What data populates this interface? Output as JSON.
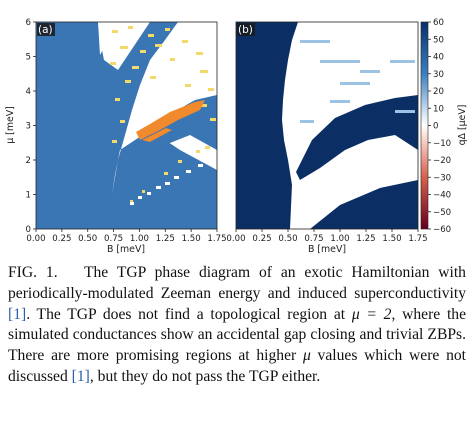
{
  "chart_data": [
    {
      "type": "heatmap",
      "panel_label": "(a)",
      "xlabel": "B [meV]",
      "ylabel": "μ [meV]",
      "xlim": [
        0.0,
        1.75
      ],
      "ylim": [
        0,
        6
      ],
      "x_ticks": [
        "0.00",
        "0.25",
        "0.50",
        "0.75",
        "1.00",
        "1.25",
        "1.50",
        "1.75"
      ],
      "y_ticks": [
        "0",
        "1",
        "2",
        "3",
        "4",
        "5",
        "6"
      ],
      "colors": {
        "trivial": "#3a75b4",
        "gapless": "#ffffff",
        "scattered": "#f2d96a",
        "topological": "#f08a2c"
      },
      "regions": [
        {
          "name": "topological (orange)",
          "polygon_data": [
            [
              0.88,
              2.55
            ],
            [
              1.2,
              2.95
            ],
            [
              1.5,
              3.25
            ],
            [
              1.62,
              3.55
            ],
            [
              1.45,
              3.55
            ],
            [
              1.15,
              3.15
            ],
            [
              0.9,
              2.85
            ]
          ]
        },
        {
          "name": "topological (orange) lower",
          "polygon_data": [
            [
              0.98,
              2.4
            ],
            [
              1.25,
              2.62
            ],
            [
              1.1,
              2.7
            ],
            [
              0.95,
              2.55
            ]
          ]
        }
      ]
    },
    {
      "type": "heatmap",
      "panel_label": "(b)",
      "xlabel": "B [meV]",
      "ylabel": "",
      "xlim": [
        0.0,
        1.75
      ],
      "ylim": [
        0,
        6
      ],
      "x_ticks": [
        "0.00",
        "0.25",
        "0.50",
        "0.75",
        "1.00",
        "1.25",
        "1.50",
        "1.75"
      ],
      "colorbar": {
        "label": "qΔ [μeV]",
        "range": [
          -60,
          60
        ],
        "ticks": [
          "60",
          "50",
          "40",
          "30",
          "20",
          "10",
          "0",
          "−10",
          "−20",
          "−30",
          "−40",
          "−50",
          "−60"
        ]
      }
    }
  ],
  "caption": {
    "prefix": "FIG. 1.",
    "text_1": "The TGP phase diagram of an exotic Hamiltonian with periodically-modulated Zeeman energy and induced superconductivity ",
    "cite_1": "[1]",
    "text_2": ". The TGP does not find a topological region at ",
    "mu_eq": "μ = 2",
    "text_3": ", where the simulated conductances show an accidental gap closing and trivial ZBPs. There are more promising regions at higher ",
    "mu": "μ",
    "text_4": " values which were not discussed ",
    "cite_2": "[1]",
    "text_5": ", but they do not pass the TGP either."
  }
}
